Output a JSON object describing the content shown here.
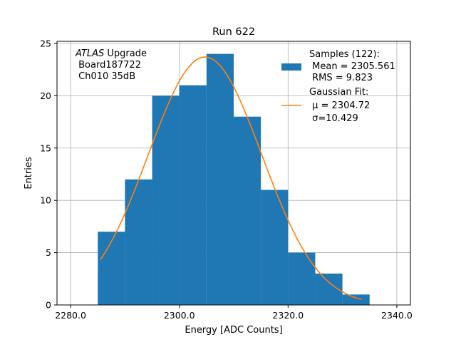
{
  "chart_data": {
    "type": "bar",
    "title": "Run 622",
    "xlabel": "Energy [ADC Counts]",
    "ylabel": "Entries",
    "xlim": [
      2277.5,
      2342.5
    ],
    "ylim": [
      0,
      25.2
    ],
    "x_ticks": [
      2280.0,
      2300.0,
      2320.0,
      2340.0
    ],
    "x_tick_labels": [
      "2280.0",
      "2300.0",
      "2320.0",
      "2340.0"
    ],
    "y_ticks": [
      0,
      5,
      10,
      15,
      20,
      25
    ],
    "y_tick_labels": [
      "0",
      "5",
      "10",
      "15",
      "20",
      "25"
    ],
    "grid": true,
    "legend_position": "top-right",
    "bin_edges": [
      2285,
      2290,
      2295,
      2300,
      2305,
      2310,
      2315,
      2320,
      2325,
      2330,
      2335
    ],
    "values": [
      7,
      12,
      20,
      21,
      24,
      18,
      11,
      5,
      3,
      1
    ],
    "series": [
      {
        "name": "Samples (122):",
        "legend_lines": [
          "Samples (122):",
          " Mean = 2305.561",
          " RMS = 9.823"
        ],
        "color": "#1f77b4",
        "kind": "histogram"
      },
      {
        "name": "Gaussian Fit:",
        "legend_lines": [
          "Gaussian Fit:",
          " μ = 2304.72",
          " σ=10.429"
        ],
        "color": "#ff7f0e",
        "kind": "line",
        "fit": {
          "amplitude": 23.7,
          "mu": 2304.72,
          "sigma": 10.429,
          "x_range": [
            2285.5,
            2333.5
          ]
        }
      }
    ],
    "annotation": {
      "italic": "ATLAS",
      "line1_rest": " Upgrade",
      "line2": " Board187722",
      "line3": " Ch010 35dB"
    }
  }
}
